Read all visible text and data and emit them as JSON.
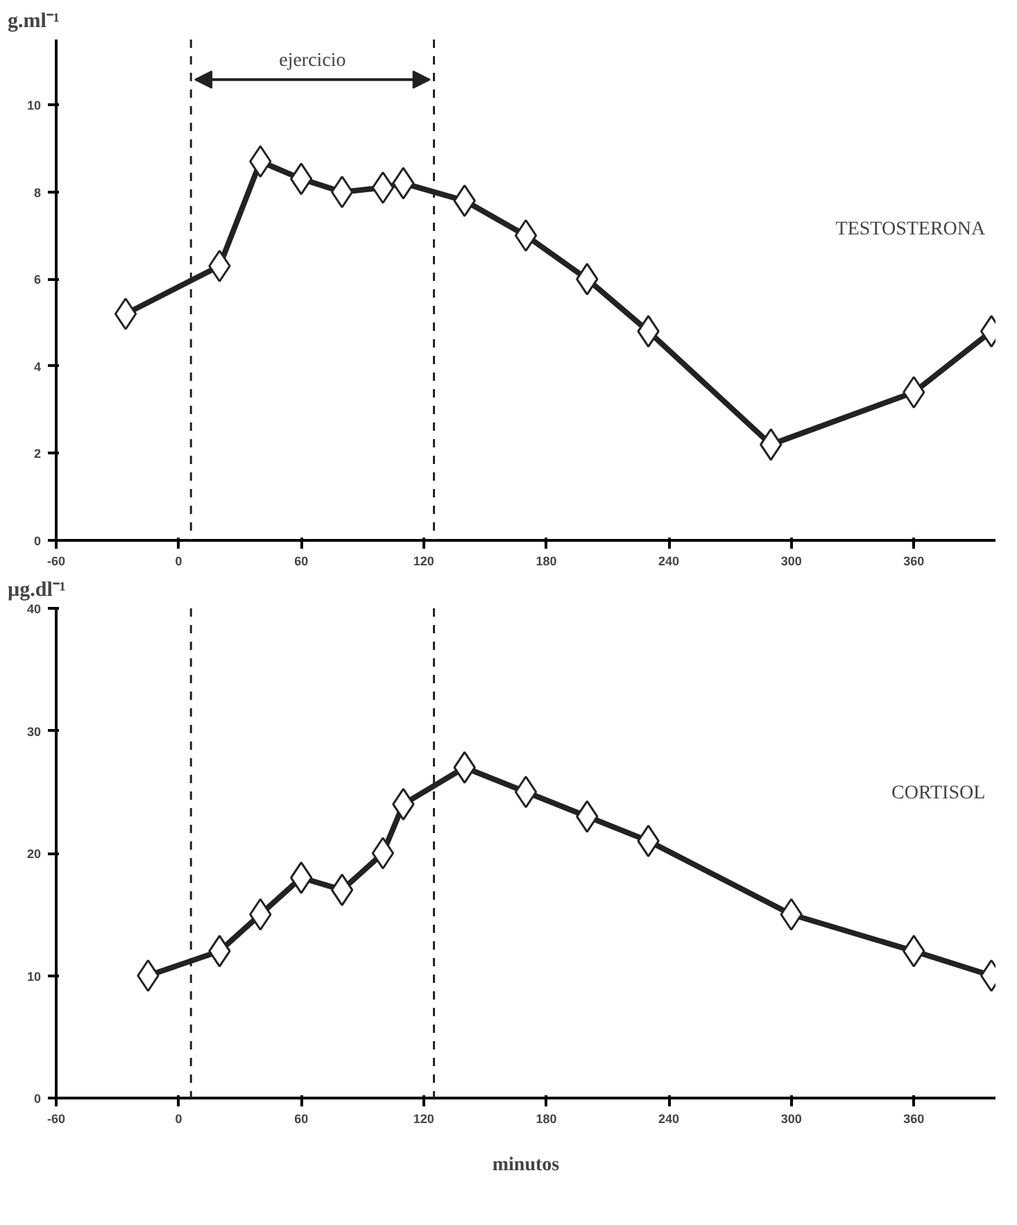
{
  "chart_data": [
    {
      "type": "line",
      "ylabel": "g.ml⁻¹",
      "xlim": [
        -60,
        400
      ],
      "ylim": [
        0,
        11.5
      ],
      "xticks": [
        -60,
        0,
        60,
        120,
        180,
        240,
        300,
        360
      ],
      "yticks": [
        0,
        2,
        4,
        6,
        8,
        10
      ],
      "marker": "diamond",
      "line_style": "solid",
      "grid": false,
      "annotations": [
        "ejercicio"
      ],
      "ref_lines": [
        {
          "axis": "x",
          "value": 6,
          "color": "#222222",
          "line_style": "dashed"
        },
        {
          "axis": "x",
          "value": 125,
          "color": "#222222",
          "line_style": "dashed"
        }
      ],
      "series": [
        {
          "name": "TESTOSTERONA",
          "color": "#222222",
          "x": [
            -26,
            20,
            40,
            60,
            80,
            100,
            110,
            140,
            170,
            200,
            230,
            290,
            360,
            398
          ],
          "values": [
            5.2,
            6.3,
            8.7,
            8.3,
            8.0,
            8.1,
            8.2,
            7.8,
            7.0,
            6.0,
            4.8,
            2.2,
            3.4,
            4.8
          ]
        }
      ]
    },
    {
      "type": "line",
      "ylabel": "µg.dl⁻¹",
      "xlabel": "minutos",
      "xlim": [
        -60,
        400
      ],
      "ylim": [
        0,
        40
      ],
      "xticks": [
        -60,
        0,
        60,
        120,
        180,
        240,
        300,
        360
      ],
      "yticks": [
        0,
        10,
        20,
        30,
        40
      ],
      "marker": "diamond",
      "line_style": "solid",
      "grid": false,
      "ref_lines": [
        {
          "axis": "x",
          "value": 6,
          "color": "#222222",
          "line_style": "dashed"
        },
        {
          "axis": "x",
          "value": 125,
          "color": "#222222",
          "line_style": "dashed"
        }
      ],
      "series": [
        {
          "name": "CORTISOL",
          "color": "#222222",
          "x": [
            -15,
            20,
            40,
            60,
            80,
            100,
            110,
            140,
            170,
            200,
            230,
            300,
            360,
            398
          ],
          "values": [
            10,
            12,
            15,
            18,
            17,
            20,
            24,
            27,
            25,
            23,
            21,
            15,
            12,
            10
          ]
        }
      ]
    }
  ]
}
